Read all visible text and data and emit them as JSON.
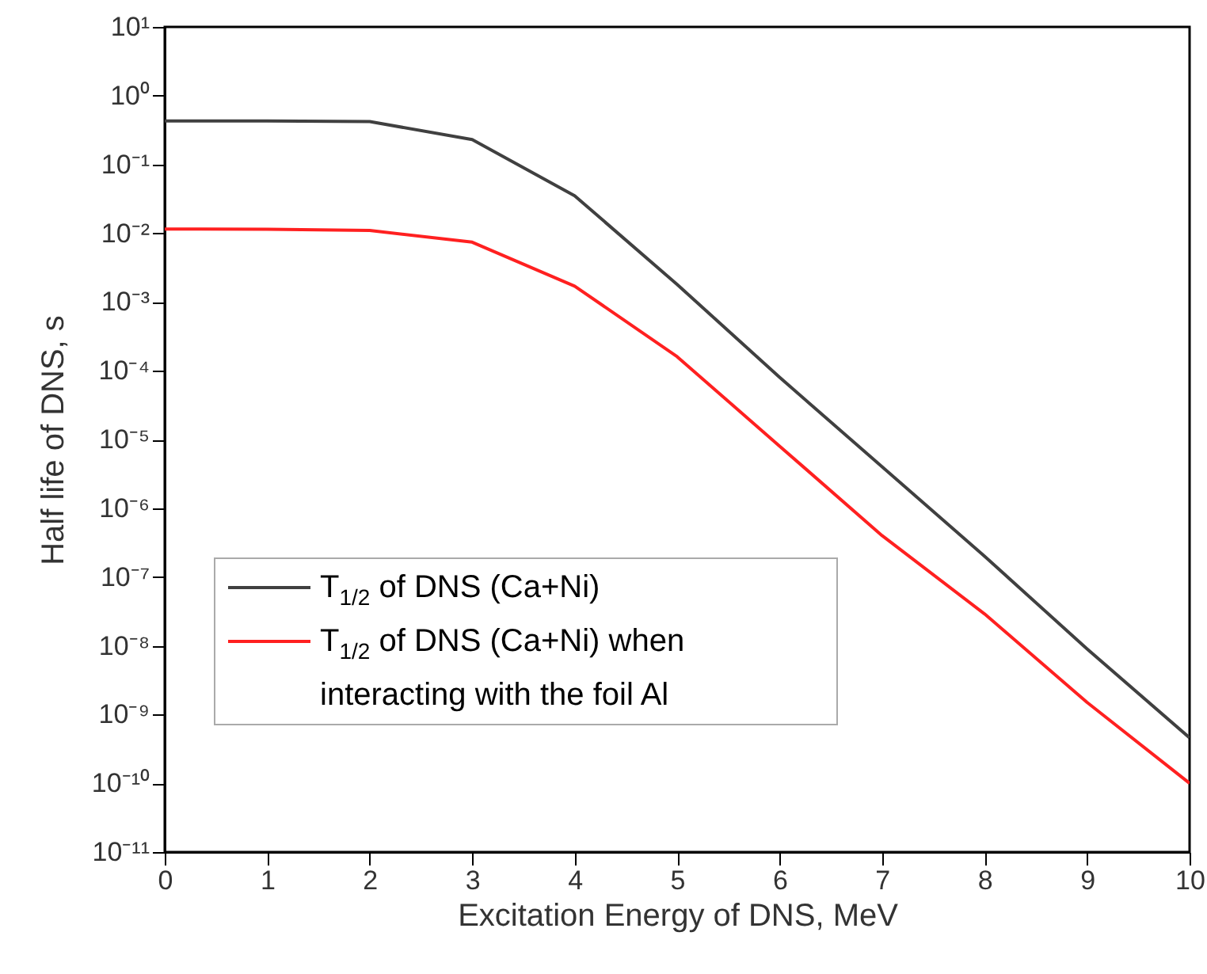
{
  "chart_data": {
    "type": "line",
    "xlabel": "Excitation Energy of DNS, MeV",
    "ylabel": "Half life of DNS, s",
    "x": [
      0,
      1,
      2,
      3,
      4,
      5,
      6,
      7,
      8,
      9,
      10
    ],
    "series": [
      {
        "name": "T$_{1/2}$ of DNS (Ca+Ni)",
        "color": "#404040",
        "values": [
          0.43,
          0.43,
          0.42,
          0.23,
          0.035,
          0.0018,
          8e-05,
          4e-06,
          2e-07,
          9e-09,
          4.6e-10
        ]
      },
      {
        "name": "T$_{1/2}$ of DNS (Ca+Ni) when interacting with the foil Al",
        "color": "#ff2020",
        "values": [
          0.0115,
          0.0114,
          0.011,
          0.0074,
          0.0017,
          0.00016,
          8e-06,
          4e-07,
          2.9e-08,
          1.5e-09,
          1e-10
        ]
      }
    ],
    "log": "y",
    "xlim": [
      0,
      10
    ],
    "xticks": [
      0,
      1,
      2,
      3,
      4,
      5,
      6,
      7,
      8,
      9,
      10
    ],
    "ylim": [
      1e-11,
      10
    ],
    "yticks": [
      {
        "value": 10,
        "label": "10¹"
      },
      {
        "value": 1,
        "label": "10⁰"
      },
      {
        "value": 0.1,
        "label": "10⁻¹"
      },
      {
        "value": 0.01,
        "label": "10⁻²"
      },
      {
        "value": 0.001,
        "label": "10⁻³"
      },
      {
        "value": 0.0001,
        "label": "10⁻⁴"
      },
      {
        "value": 1e-05,
        "label": "10⁻⁵"
      },
      {
        "value": 1e-06,
        "label": "10⁻⁶"
      },
      {
        "value": 1e-07,
        "label": "10⁻⁷"
      },
      {
        "value": 1e-08,
        "label": "10⁻⁸"
      },
      {
        "value": 1e-09,
        "label": "10⁻⁹"
      },
      {
        "value": 1e-10,
        "label": "10⁻¹⁰"
      },
      {
        "value": 1e-11,
        "label": "10⁻¹¹"
      }
    ],
    "grid": false,
    "legend": "bottom left",
    "line_style": "solid",
    "marker": "none"
  }
}
